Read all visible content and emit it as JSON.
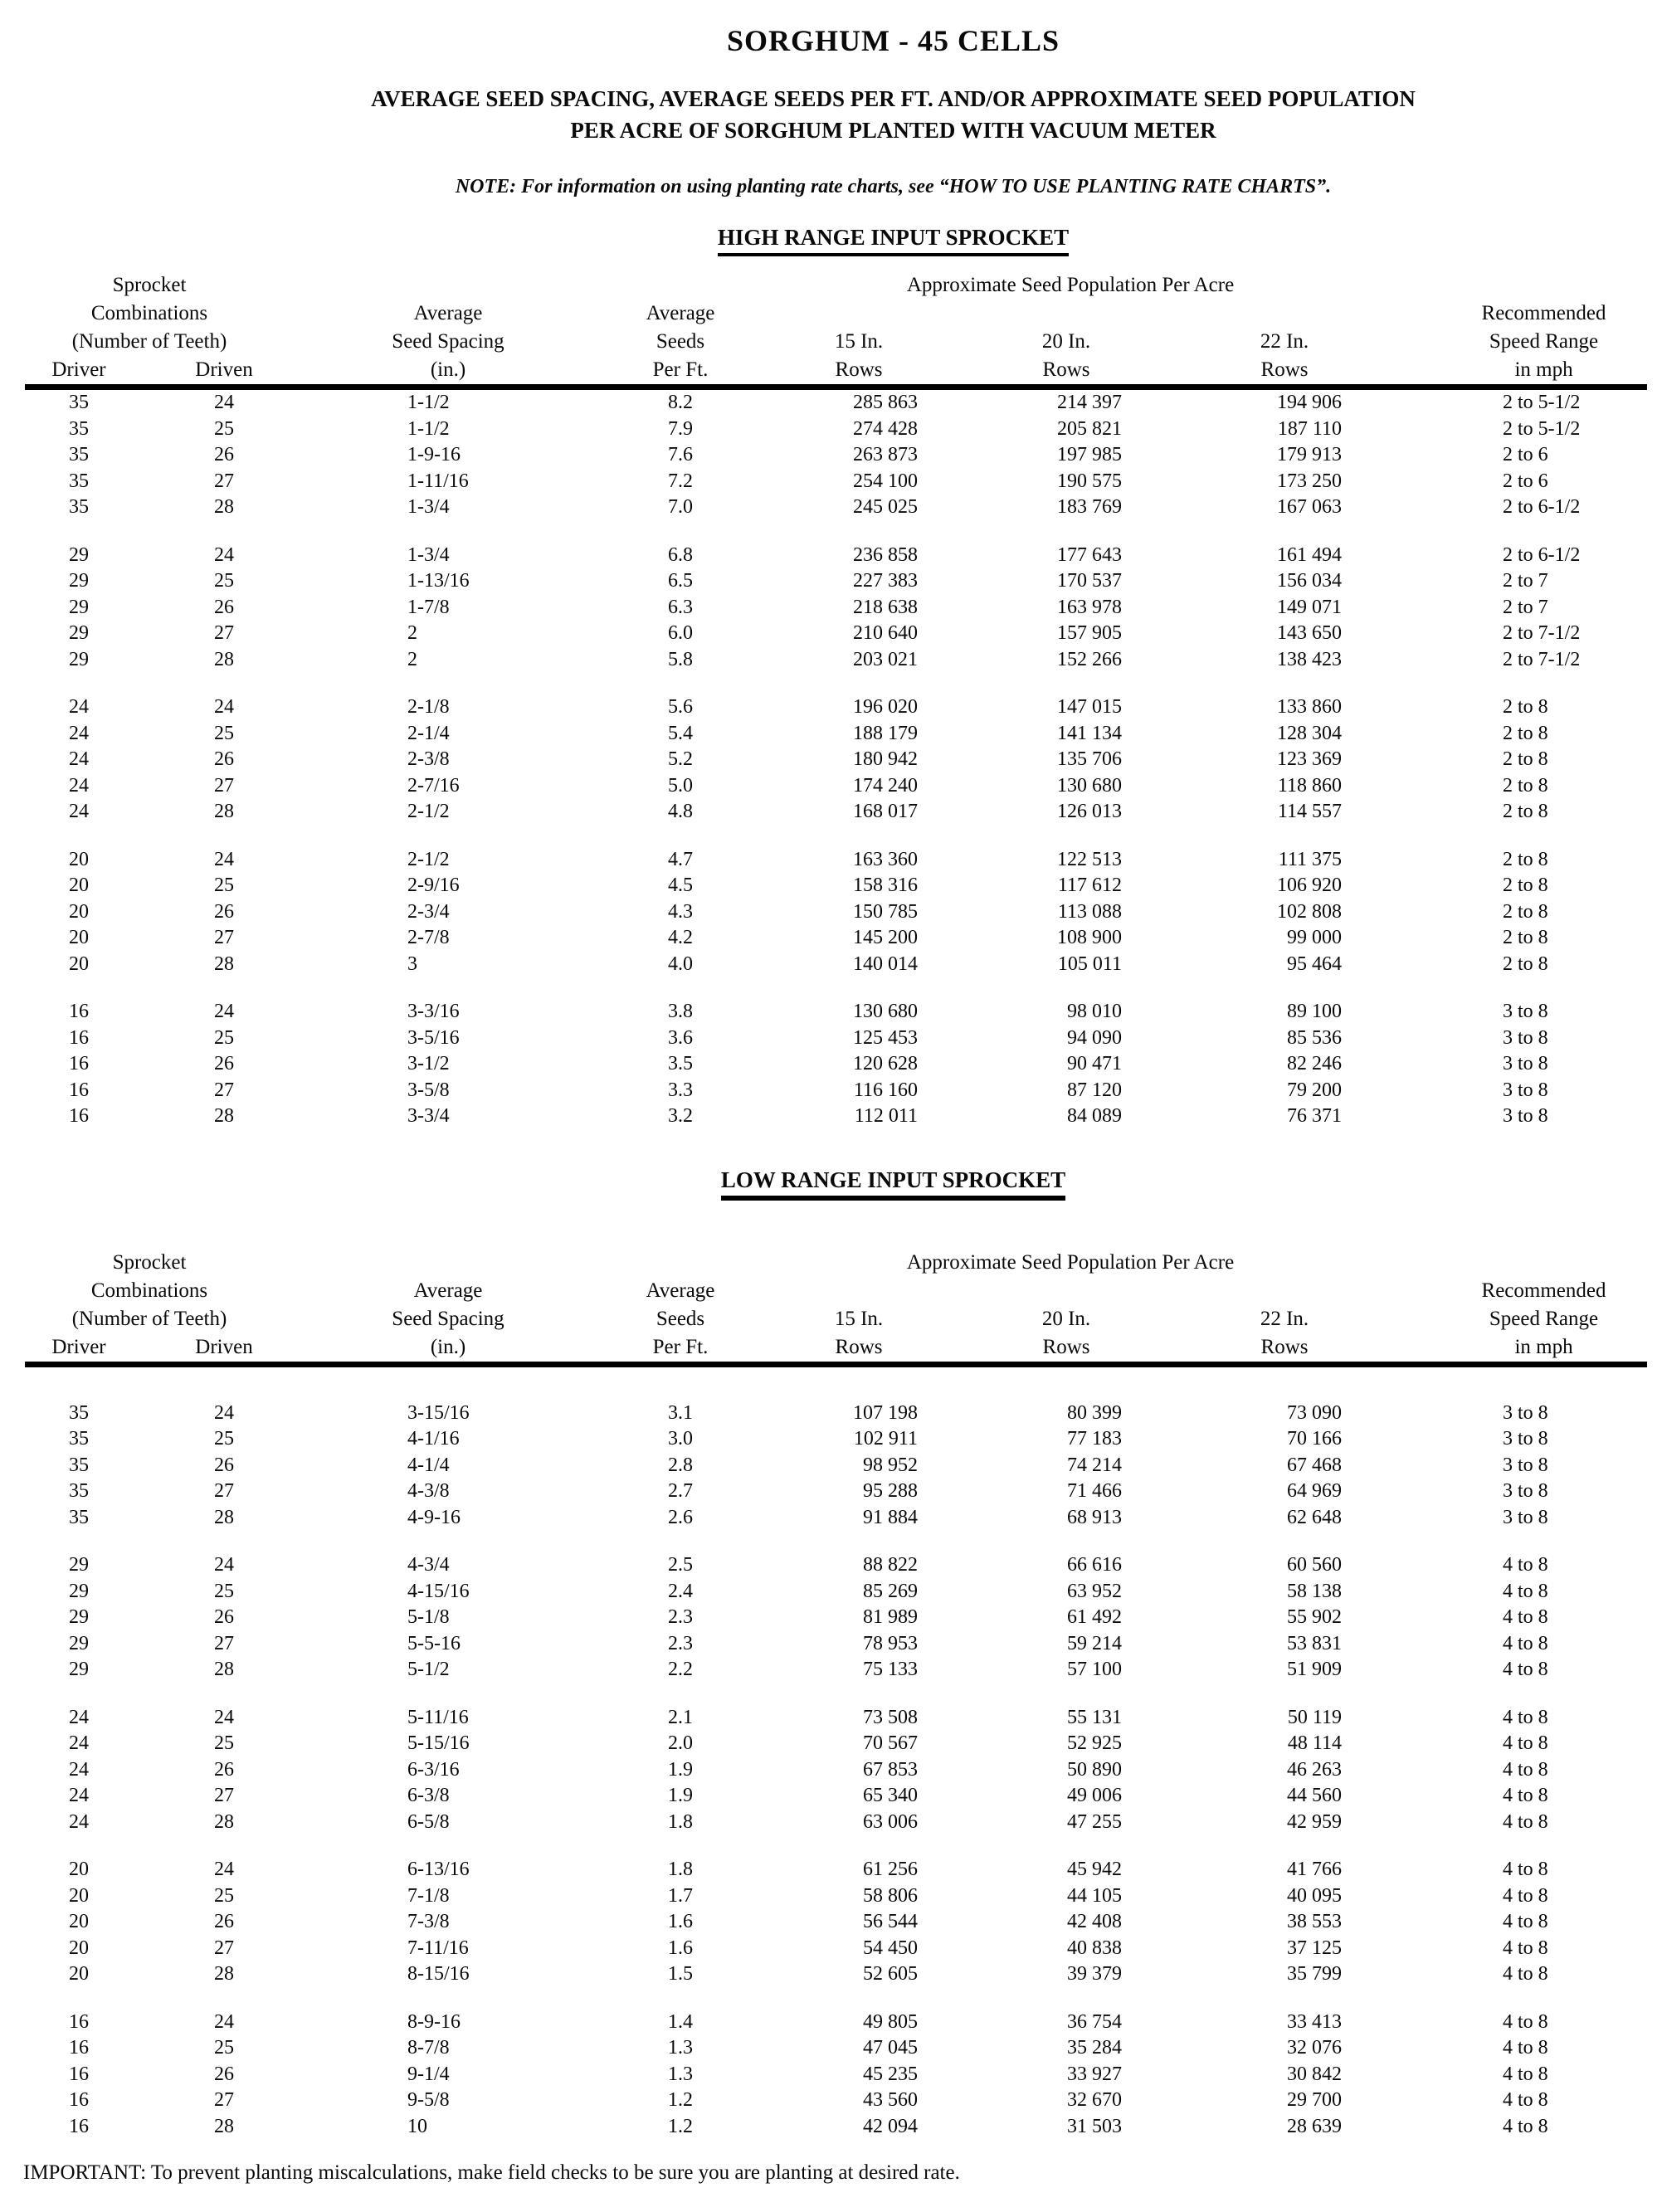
{
  "page": {
    "title": "SORGHUM - 45 CELLS",
    "subtitle_line1": "AVERAGE SEED SPACING, AVERAGE SEEDS PER FT. AND/OR APPROXIMATE SEED POPULATION",
    "subtitle_line2": "PER ACRE OF SORGHUM PLANTED WITH VACUUM METER",
    "note": "NOTE: For information on using planting rate charts, see “HOW TO USE PLANTING RATE CHARTS”.",
    "important": "IMPORTANT: To prevent planting miscalculations, make field checks to be sure you are planting at desired rate."
  },
  "columns": {
    "sprocket_line1": "Sprocket",
    "sprocket_line2": "Combinations",
    "sprocket_line3": "(Number of Teeth)",
    "driver": "Driver",
    "driven": "Driven",
    "spacing_line1": "Average",
    "spacing_line2": "Seed Spacing",
    "spacing_line3": "(in.)",
    "seeds_line1": "Average",
    "seeds_line2": "Seeds",
    "seeds_line3": "Per Ft.",
    "population": "Approximate Seed Population Per Acre",
    "rows15": "15 In.",
    "rows20": "20 In.",
    "rows22": "22 In.",
    "rows_label": "Rows",
    "speed_line1": "Recommended",
    "speed_line2": "Speed Range",
    "speed_line3": "in mph"
  },
  "high_range": {
    "title": "HIGH RANGE INPUT SPROCKET",
    "blocks": [
      [
        [
          "35",
          "24",
          "1-1/2",
          "8.2",
          "285 863",
          "214 397",
          "194 906",
          "2 to 5-1/2"
        ],
        [
          "35",
          "25",
          "1-1/2",
          "7.9",
          "274 428",
          "205 821",
          "187 110",
          "2 to 5-1/2"
        ],
        [
          "35",
          "26",
          "1-9-16",
          "7.6",
          "263 873",
          "197 985",
          "179 913",
          "2 to 6"
        ],
        [
          "35",
          "27",
          "1-11/16",
          "7.2",
          "254 100",
          "190 575",
          "173 250",
          "2 to 6"
        ],
        [
          "35",
          "28",
          "1-3/4",
          "7.0",
          "245 025",
          "183 769",
          "167 063",
          "2 to 6-1/2"
        ]
      ],
      [
        [
          "29",
          "24",
          "1-3/4",
          "6.8",
          "236 858",
          "177 643",
          "161 494",
          "2 to 6-1/2"
        ],
        [
          "29",
          "25",
          "1-13/16",
          "6.5",
          "227 383",
          "170 537",
          "156 034",
          "2 to 7"
        ],
        [
          "29",
          "26",
          "1-7/8",
          "6.3",
          "218 638",
          "163 978",
          "149 071",
          "2 to 7"
        ],
        [
          "29",
          "27",
          "2",
          "6.0",
          "210 640",
          "157 905",
          "143 650",
          "2 to 7-1/2"
        ],
        [
          "29",
          "28",
          "2",
          "5.8",
          "203 021",
          "152 266",
          "138 423",
          "2 to 7-1/2"
        ]
      ],
      [
        [
          "24",
          "24",
          "2-1/8",
          "5.6",
          "196 020",
          "147 015",
          "133 860",
          "2 to 8"
        ],
        [
          "24",
          "25",
          "2-1/4",
          "5.4",
          "188 179",
          "141 134",
          "128 304",
          "2 to 8"
        ],
        [
          "24",
          "26",
          "2-3/8",
          "5.2",
          "180 942",
          "135 706",
          "123 369",
          "2 to 8"
        ],
        [
          "24",
          "27",
          "2-7/16",
          "5.0",
          "174 240",
          "130 680",
          "118 860",
          "2 to 8"
        ],
        [
          "24",
          "28",
          "2-1/2",
          "4.8",
          "168 017",
          "126 013",
          "114 557",
          "2 to 8"
        ]
      ],
      [
        [
          "20",
          "24",
          "2-1/2",
          "4.7",
          "163 360",
          "122 513",
          "111 375",
          "2 to 8"
        ],
        [
          "20",
          "25",
          "2-9/16",
          "4.5",
          "158 316",
          "117 612",
          "106 920",
          "2 to 8"
        ],
        [
          "20",
          "26",
          "2-3/4",
          "4.3",
          "150 785",
          "113 088",
          "102 808",
          "2 to 8"
        ],
        [
          "20",
          "27",
          "2-7/8",
          "4.2",
          "145 200",
          "108 900",
          "99 000",
          "2 to 8"
        ],
        [
          "20",
          "28",
          "3",
          "4.0",
          "140 014",
          "105 011",
          "95 464",
          "2 to 8"
        ]
      ],
      [
        [
          "16",
          "24",
          "3-3/16",
          "3.8",
          "130 680",
          "98 010",
          "89 100",
          "3 to 8"
        ],
        [
          "16",
          "25",
          "3-5/16",
          "3.6",
          "125 453",
          "94 090",
          "85 536",
          "3 to 8"
        ],
        [
          "16",
          "26",
          "3-1/2",
          "3.5",
          "120 628",
          "90 471",
          "82 246",
          "3 to 8"
        ],
        [
          "16",
          "27",
          "3-5/8",
          "3.3",
          "116 160",
          "87 120",
          "79 200",
          "3 to 8"
        ],
        [
          "16",
          "28",
          "3-3/4",
          "3.2",
          "112 011",
          "84 089",
          "76 371",
          "3 to 8"
        ]
      ]
    ]
  },
  "low_range": {
    "title": "LOW RANGE INPUT SPROCKET",
    "blocks": [
      [
        [
          "35",
          "24",
          "3-15/16",
          "3.1",
          "107 198",
          "80 399",
          "73 090",
          "3 to 8"
        ],
        [
          "35",
          "25",
          "4-1/16",
          "3.0",
          "102 911",
          "77 183",
          "70 166",
          "3 to 8"
        ],
        [
          "35",
          "26",
          "4-1/4",
          "2.8",
          "98 952",
          "74 214",
          "67 468",
          "3 to 8"
        ],
        [
          "35",
          "27",
          "4-3/8",
          "2.7",
          "95 288",
          "71 466",
          "64 969",
          "3 to 8"
        ],
        [
          "35",
          "28",
          "4-9-16",
          "2.6",
          "91 884",
          "68 913",
          "62 648",
          "3 to 8"
        ]
      ],
      [
        [
          "29",
          "24",
          "4-3/4",
          "2.5",
          "88 822",
          "66 616",
          "60 560",
          "4 to 8"
        ],
        [
          "29",
          "25",
          "4-15/16",
          "2.4",
          "85 269",
          "63 952",
          "58 138",
          "4 to 8"
        ],
        [
          "29",
          "26",
          "5-1/8",
          "2.3",
          "81 989",
          "61 492",
          "55 902",
          "4 to 8"
        ],
        [
          "29",
          "27",
          "5-5-16",
          "2.3",
          "78 953",
          "59 214",
          "53 831",
          "4 to 8"
        ],
        [
          "29",
          "28",
          "5-1/2",
          "2.2",
          "75 133",
          "57 100",
          "51 909",
          "4 to 8"
        ]
      ],
      [
        [
          "24",
          "24",
          "5-11/16",
          "2.1",
          "73 508",
          "55 131",
          "50 119",
          "4 to 8"
        ],
        [
          "24",
          "25",
          "5-15/16",
          "2.0",
          "70 567",
          "52 925",
          "48 114",
          "4 to 8"
        ],
        [
          "24",
          "26",
          "6-3/16",
          "1.9",
          "67 853",
          "50 890",
          "46 263",
          "4 to 8"
        ],
        [
          "24",
          "27",
          "6-3/8",
          "1.9",
          "65 340",
          "49 006",
          "44 560",
          "4 to 8"
        ],
        [
          "24",
          "28",
          "6-5/8",
          "1.8",
          "63 006",
          "47 255",
          "42 959",
          "4 to 8"
        ]
      ],
      [
        [
          "20",
          "24",
          "6-13/16",
          "1.8",
          "61 256",
          "45 942",
          "41 766",
          "4 to 8"
        ],
        [
          "20",
          "25",
          "7-1/8",
          "1.7",
          "58 806",
          "44 105",
          "40 095",
          "4 to 8"
        ],
        [
          "20",
          "26",
          "7-3/8",
          "1.6",
          "56 544",
          "42 408",
          "38 553",
          "4 to 8"
        ],
        [
          "20",
          "27",
          "7-11/16",
          "1.6",
          "54 450",
          "40 838",
          "37 125",
          "4 to 8"
        ],
        [
          "20",
          "28",
          "8-15/16",
          "1.5",
          "52 605",
          "39 379",
          "35 799",
          "4 to 8"
        ]
      ],
      [
        [
          "16",
          "24",
          "8-9-16",
          "1.4",
          "49 805",
          "36 754",
          "33 413",
          "4 to 8"
        ],
        [
          "16",
          "25",
          "8-7/8",
          "1.3",
          "47 045",
          "35 284",
          "32 076",
          "4 to 8"
        ],
        [
          "16",
          "26",
          "9-1/4",
          "1.3",
          "45 235",
          "33 927",
          "30 842",
          "4 to 8"
        ],
        [
          "16",
          "27",
          "9-5/8",
          "1.2",
          "43 560",
          "32 670",
          "29 700",
          "4 to 8"
        ],
        [
          "16",
          "28",
          "10",
          "1.2",
          "42 094",
          "31 503",
          "28 639",
          "4 to 8"
        ]
      ]
    ]
  }
}
